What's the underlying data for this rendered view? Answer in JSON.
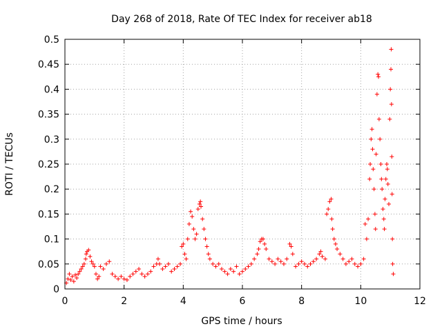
{
  "chart_data": {
    "type": "scatter",
    "title": "Day 268 of 2018, Rate Of TEC Index for receiver ab18",
    "xlabel": "GPS time / hours",
    "ylabel": "ROTI / TECUs",
    "xlim": [
      0,
      12
    ],
    "ylim": [
      0,
      0.5
    ],
    "xticks": [
      0,
      2,
      4,
      6,
      8,
      10,
      12
    ],
    "yticks": [
      0,
      0.05,
      0.1,
      0.15,
      0.2,
      0.25,
      0.3,
      0.35,
      0.4,
      0.45,
      0.5
    ],
    "xtick_labels": [
      "0",
      "2",
      "4",
      "6",
      "8",
      "10",
      "12"
    ],
    "ytick_labels": [
      "0",
      "0.05",
      "0.1",
      "0.15",
      "0.2",
      "0.25",
      "0.3",
      "0.35",
      "0.4",
      "0.45",
      "0.5"
    ],
    "grid": true,
    "marker": "+",
    "marker_color": "#ff0000",
    "series": [
      {
        "name": "ROTI",
        "points": [
          [
            0.05,
            0.012
          ],
          [
            0.1,
            0.02
          ],
          [
            0.15,
            0.03
          ],
          [
            0.2,
            0.018
          ],
          [
            0.25,
            0.025
          ],
          [
            0.3,
            0.015
          ],
          [
            0.35,
            0.028
          ],
          [
            0.4,
            0.022
          ],
          [
            0.45,
            0.03
          ],
          [
            0.5,
            0.035
          ],
          [
            0.55,
            0.04
          ],
          [
            0.6,
            0.045
          ],
          [
            0.65,
            0.05
          ],
          [
            0.7,
            0.06
          ],
          [
            0.72,
            0.07
          ],
          [
            0.75,
            0.075
          ],
          [
            0.8,
            0.078
          ],
          [
            0.85,
            0.065
          ],
          [
            0.9,
            0.055
          ],
          [
            0.95,
            0.05
          ],
          [
            1.0,
            0.045
          ],
          [
            1.05,
            0.03
          ],
          [
            1.1,
            0.02
          ],
          [
            1.15,
            0.025
          ],
          [
            1.2,
            0.045
          ],
          [
            1.3,
            0.04
          ],
          [
            1.4,
            0.05
          ],
          [
            1.5,
            0.055
          ],
          [
            1.6,
            0.03
          ],
          [
            1.7,
            0.025
          ],
          [
            1.8,
            0.02
          ],
          [
            1.9,
            0.025
          ],
          [
            2.0,
            0.02
          ],
          [
            2.1,
            0.018
          ],
          [
            2.2,
            0.025
          ],
          [
            2.3,
            0.03
          ],
          [
            2.4,
            0.035
          ],
          [
            2.5,
            0.04
          ],
          [
            2.6,
            0.03
          ],
          [
            2.7,
            0.025
          ],
          [
            2.8,
            0.03
          ],
          [
            2.9,
            0.035
          ],
          [
            3.0,
            0.045
          ],
          [
            3.1,
            0.05
          ],
          [
            3.15,
            0.06
          ],
          [
            3.2,
            0.05
          ],
          [
            3.3,
            0.04
          ],
          [
            3.4,
            0.045
          ],
          [
            3.5,
            0.05
          ],
          [
            3.6,
            0.035
          ],
          [
            3.7,
            0.04
          ],
          [
            3.8,
            0.045
          ],
          [
            3.9,
            0.05
          ],
          [
            3.95,
            0.085
          ],
          [
            4.0,
            0.09
          ],
          [
            4.05,
            0.07
          ],
          [
            4.1,
            0.06
          ],
          [
            4.15,
            0.1
          ],
          [
            4.2,
            0.13
          ],
          [
            4.25,
            0.155
          ],
          [
            4.3,
            0.145
          ],
          [
            4.35,
            0.12
          ],
          [
            4.4,
            0.1
          ],
          [
            4.45,
            0.11
          ],
          [
            4.5,
            0.16
          ],
          [
            4.55,
            0.17
          ],
          [
            4.58,
            0.175
          ],
          [
            4.6,
            0.165
          ],
          [
            4.65,
            0.14
          ],
          [
            4.7,
            0.12
          ],
          [
            4.75,
            0.1
          ],
          [
            4.8,
            0.085
          ],
          [
            4.85,
            0.07
          ],
          [
            4.9,
            0.06
          ],
          [
            5.0,
            0.05
          ],
          [
            5.1,
            0.045
          ],
          [
            5.2,
            0.05
          ],
          [
            5.3,
            0.04
          ],
          [
            5.4,
            0.035
          ],
          [
            5.5,
            0.03
          ],
          [
            5.6,
            0.04
          ],
          [
            5.7,
            0.035
          ],
          [
            5.8,
            0.045
          ],
          [
            5.9,
            0.03
          ],
          [
            6.0,
            0.035
          ],
          [
            6.1,
            0.04
          ],
          [
            6.2,
            0.045
          ],
          [
            6.3,
            0.05
          ],
          [
            6.4,
            0.06
          ],
          [
            6.5,
            0.07
          ],
          [
            6.55,
            0.08
          ],
          [
            6.6,
            0.095
          ],
          [
            6.65,
            0.1
          ],
          [
            6.7,
            0.1
          ],
          [
            6.75,
            0.09
          ],
          [
            6.8,
            0.08
          ],
          [
            6.9,
            0.06
          ],
          [
            7.0,
            0.055
          ],
          [
            7.1,
            0.05
          ],
          [
            7.2,
            0.06
          ],
          [
            7.3,
            0.055
          ],
          [
            7.4,
            0.05
          ],
          [
            7.5,
            0.06
          ],
          [
            7.6,
            0.09
          ],
          [
            7.65,
            0.085
          ],
          [
            7.7,
            0.07
          ],
          [
            7.8,
            0.045
          ],
          [
            7.9,
            0.05
          ],
          [
            8.0,
            0.055
          ],
          [
            8.1,
            0.05
          ],
          [
            8.2,
            0.045
          ],
          [
            8.3,
            0.05
          ],
          [
            8.4,
            0.055
          ],
          [
            8.5,
            0.06
          ],
          [
            8.6,
            0.07
          ],
          [
            8.65,
            0.075
          ],
          [
            8.7,
            0.065
          ],
          [
            8.8,
            0.06
          ],
          [
            8.85,
            0.15
          ],
          [
            8.9,
            0.16
          ],
          [
            8.95,
            0.175
          ],
          [
            9.0,
            0.18
          ],
          [
            9.02,
            0.14
          ],
          [
            9.05,
            0.12
          ],
          [
            9.1,
            0.1
          ],
          [
            9.15,
            0.09
          ],
          [
            9.2,
            0.08
          ],
          [
            9.3,
            0.07
          ],
          [
            9.4,
            0.06
          ],
          [
            9.5,
            0.05
          ],
          [
            9.6,
            0.055
          ],
          [
            9.7,
            0.06
          ],
          [
            9.8,
            0.05
          ],
          [
            9.9,
            0.045
          ],
          [
            10.0,
            0.05
          ],
          [
            10.1,
            0.06
          ],
          [
            10.15,
            0.13
          ],
          [
            10.2,
            0.1
          ],
          [
            10.25,
            0.14
          ],
          [
            10.3,
            0.22
          ],
          [
            10.32,
            0.25
          ],
          [
            10.35,
            0.3
          ],
          [
            10.38,
            0.32
          ],
          [
            10.4,
            0.28
          ],
          [
            10.42,
            0.24
          ],
          [
            10.45,
            0.2
          ],
          [
            10.48,
            0.15
          ],
          [
            10.5,
            0.12
          ],
          [
            10.52,
            0.27
          ],
          [
            10.55,
            0.39
          ],
          [
            10.58,
            0.43
          ],
          [
            10.6,
            0.425
          ],
          [
            10.62,
            0.34
          ],
          [
            10.65,
            0.3
          ],
          [
            10.68,
            0.25
          ],
          [
            10.7,
            0.22
          ],
          [
            10.72,
            0.2
          ],
          [
            10.75,
            0.16
          ],
          [
            10.78,
            0.14
          ],
          [
            10.8,
            0.12
          ],
          [
            10.82,
            0.18
          ],
          [
            10.85,
            0.22
          ],
          [
            10.88,
            0.25
          ],
          [
            10.9,
            0.24
          ],
          [
            10.92,
            0.21
          ],
          [
            10.95,
            0.17
          ],
          [
            10.98,
            0.34
          ],
          [
            11.0,
            0.4
          ],
          [
            11.02,
            0.44
          ],
          [
            11.03,
            0.48
          ],
          [
            11.04,
            0.37
          ],
          [
            11.05,
            0.265
          ],
          [
            11.06,
            0.19
          ],
          [
            11.07,
            0.1
          ],
          [
            11.08,
            0.05
          ],
          [
            11.1,
            0.03
          ]
        ]
      }
    ]
  }
}
